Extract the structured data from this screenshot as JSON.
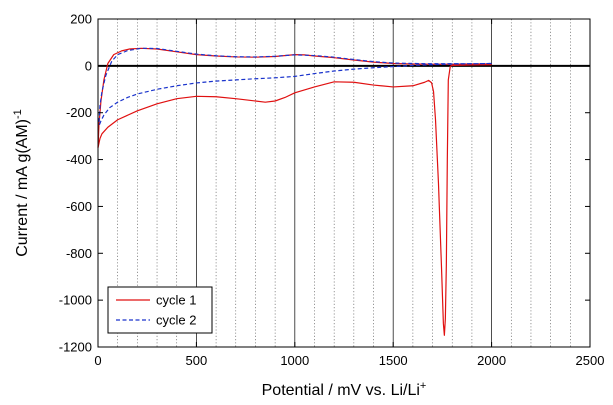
{
  "chart_data": {
    "type": "line",
    "title": "",
    "xlabel": {
      "main": "Potential / mV vs. Li/Li",
      "sup": "+"
    },
    "ylabel": {
      "main": "Current / mA g(AM)",
      "sup": "-1"
    },
    "xlim": [
      0,
      2500
    ],
    "ylim": [
      -1200,
      200
    ],
    "x_ticks": [
      0,
      500,
      1000,
      1500,
      2000,
      2500
    ],
    "y_ticks": [
      200,
      0,
      -200,
      -400,
      -600,
      -800,
      -1000,
      -1200
    ],
    "x_tick_labels": [
      "0",
      "500",
      "1000",
      "1500",
      "2000",
      "2500"
    ],
    "y_tick_labels": [
      "200",
      "0",
      "-200",
      "-400",
      "-600",
      "-800",
      "-1000",
      "-1200"
    ],
    "gridlines": {
      "vertical_major_every": 500,
      "vertical_minor_every": 100,
      "major_style": "solid",
      "minor_style": "dotted",
      "horizontal_zero_line": true
    },
    "legend": {
      "position": "bottom-left",
      "entries": [
        "cycle 1",
        "cycle 2"
      ]
    },
    "series": [
      {
        "name": "cycle 1",
        "color": "#e01010",
        "dash": "solid",
        "points": [
          [
            2000,
            5
          ],
          [
            1900,
            4
          ],
          [
            1800,
            2
          ],
          [
            1790,
            -2
          ],
          [
            1780,
            -60
          ],
          [
            1775,
            -400
          ],
          [
            1770,
            -850
          ],
          [
            1765,
            -1080
          ],
          [
            1760,
            -1150
          ],
          [
            1755,
            -1100
          ],
          [
            1745,
            -850
          ],
          [
            1730,
            -500
          ],
          [
            1715,
            -230
          ],
          [
            1705,
            -110
          ],
          [
            1695,
            -72
          ],
          [
            1680,
            -62
          ],
          [
            1660,
            -70
          ],
          [
            1600,
            -85
          ],
          [
            1500,
            -90
          ],
          [
            1400,
            -82
          ],
          [
            1300,
            -70
          ],
          [
            1200,
            -68
          ],
          [
            1100,
            -90
          ],
          [
            1000,
            -115
          ],
          [
            950,
            -135
          ],
          [
            900,
            -150
          ],
          [
            850,
            -155
          ],
          [
            800,
            -150
          ],
          [
            700,
            -140
          ],
          [
            600,
            -132
          ],
          [
            500,
            -130
          ],
          [
            400,
            -140
          ],
          [
            300,
            -162
          ],
          [
            200,
            -192
          ],
          [
            100,
            -230
          ],
          [
            50,
            -262
          ],
          [
            20,
            -290
          ],
          [
            10,
            -310
          ],
          [
            5,
            -330
          ],
          [
            0,
            -350
          ],
          [
            5,
            -250
          ],
          [
            15,
            -150
          ],
          [
            30,
            -60
          ],
          [
            50,
            10
          ],
          [
            80,
            48
          ],
          [
            120,
            64
          ],
          [
            160,
            72
          ],
          [
            220,
            75
          ],
          [
            300,
            72
          ],
          [
            400,
            60
          ],
          [
            500,
            48
          ],
          [
            600,
            42
          ],
          [
            700,
            38
          ],
          [
            800,
            37
          ],
          [
            900,
            40
          ],
          [
            1000,
            48
          ],
          [
            1050,
            47
          ],
          [
            1100,
            42
          ],
          [
            1200,
            35
          ],
          [
            1300,
            25
          ],
          [
            1400,
            16
          ],
          [
            1500,
            10
          ],
          [
            1600,
            8
          ],
          [
            1700,
            7
          ],
          [
            1800,
            7
          ],
          [
            1900,
            8
          ],
          [
            2000,
            8
          ]
        ]
      },
      {
        "name": "cycle 2",
        "color": "#1a33cc",
        "dash": "dashed",
        "points": [
          [
            2000,
            10
          ],
          [
            1800,
            8
          ],
          [
            1600,
            2
          ],
          [
            1500,
            -3
          ],
          [
            1400,
            -8
          ],
          [
            1300,
            -14
          ],
          [
            1200,
            -22
          ],
          [
            1100,
            -33
          ],
          [
            1000,
            -45
          ],
          [
            900,
            -51
          ],
          [
            800,
            -55
          ],
          [
            700,
            -60
          ],
          [
            600,
            -65
          ],
          [
            500,
            -73
          ],
          [
            400,
            -85
          ],
          [
            300,
            -100
          ],
          [
            200,
            -120
          ],
          [
            150,
            -135
          ],
          [
            100,
            -155
          ],
          [
            60,
            -178
          ],
          [
            30,
            -210
          ],
          [
            15,
            -235
          ],
          [
            8,
            -250
          ],
          [
            5,
            -240
          ],
          [
            10,
            -170
          ],
          [
            20,
            -110
          ],
          [
            40,
            -40
          ],
          [
            70,
            20
          ],
          [
            100,
            48
          ],
          [
            150,
            65
          ],
          [
            220,
            75
          ],
          [
            300,
            74
          ],
          [
            400,
            62
          ],
          [
            500,
            50
          ],
          [
            600,
            43
          ],
          [
            700,
            39
          ],
          [
            800,
            38
          ],
          [
            900,
            41
          ],
          [
            1000,
            47
          ],
          [
            1100,
            44
          ],
          [
            1200,
            37
          ],
          [
            1300,
            27
          ],
          [
            1400,
            18
          ],
          [
            1500,
            12
          ],
          [
            1600,
            10
          ],
          [
            1700,
            9
          ],
          [
            1800,
            9
          ],
          [
            1900,
            9
          ],
          [
            2000,
            10
          ]
        ]
      }
    ]
  }
}
